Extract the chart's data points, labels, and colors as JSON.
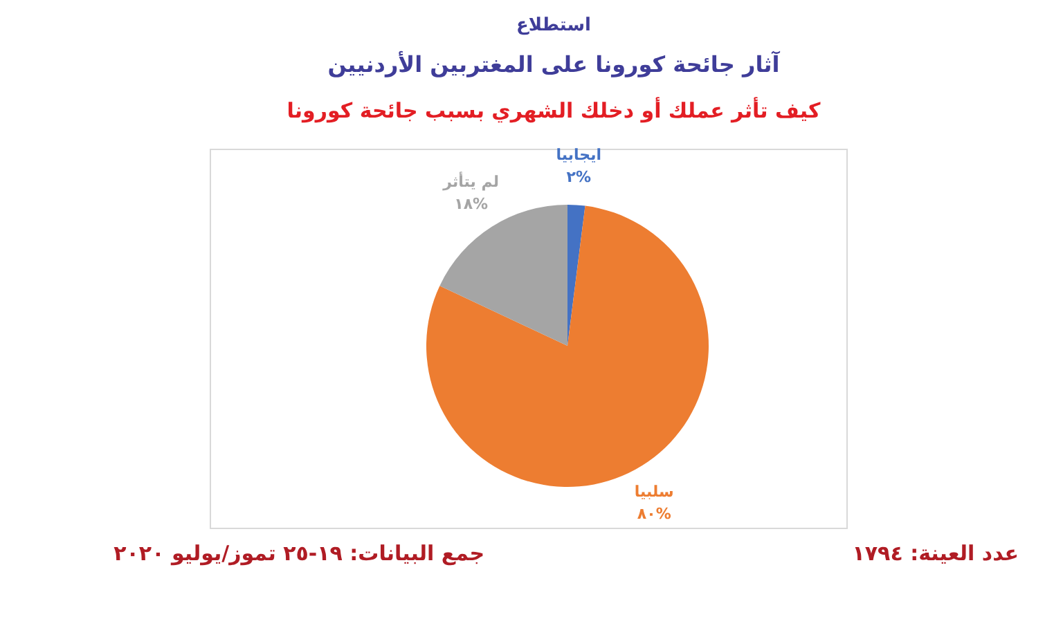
{
  "chart_data": {
    "type": "pie",
    "title": "آثار جائحة كورونا على المغتربين الأردنيين",
    "subtitle": "كيف تأثر عملك أو دخلك الشهري بسبب جائحة كورونا",
    "annotations": [
      "استطلاع",
      "عدد العينة: ١٧٩٤",
      "جمع البيانات: ١٩-٢٥ تموز/يوليو ٢٠٢٠"
    ],
    "categories": [
      "ايجابيا",
      "سلبيا",
      "لم يتأثر"
    ],
    "values": [
      2,
      80,
      18
    ],
    "colors": [
      "#4472c4",
      "#ed7d31",
      "#a5a5a5"
    ],
    "value_labels": [
      "٢%",
      "٨٠%",
      "١٨%"
    ],
    "legend": false
  }
}
